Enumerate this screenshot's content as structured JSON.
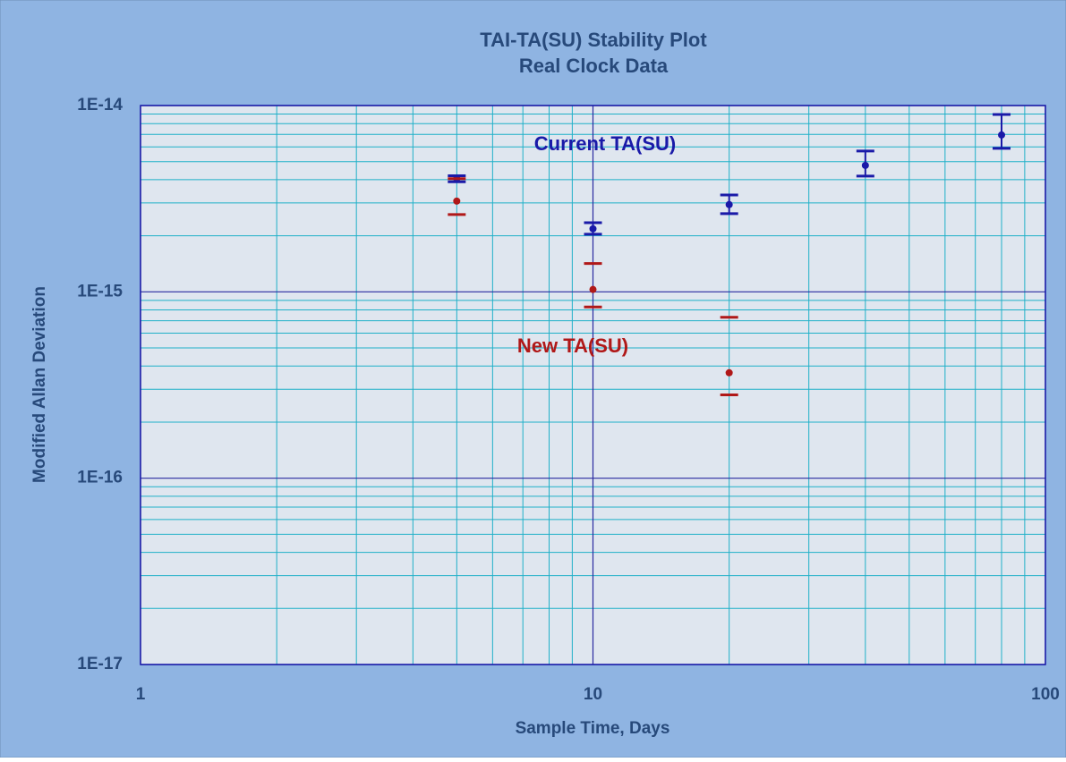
{
  "chart_data": {
    "type": "scatter",
    "title": "TAI-TA(SU) Stability Plot",
    "subtitle": "Real Clock Data",
    "x_label": "Sample Time, Days",
    "y_label": "Modified Allan Deviation",
    "xscale": "log",
    "yscale": "log",
    "grid": true,
    "xlim": [
      1,
      100
    ],
    "ylim": [
      1e-17,
      1e-14
    ],
    "xticks": [
      1,
      10,
      100
    ],
    "xminorticks": [
      2,
      3,
      4,
      5,
      6,
      7,
      8,
      9,
      20,
      30,
      40,
      50,
      60,
      70,
      80,
      90
    ],
    "yticks": [
      {
        "value": 1e-17,
        "label": "1E-17"
      },
      {
        "value": 1e-16,
        "label": "1E-16"
      },
      {
        "value": 1e-15,
        "label": "1E-15"
      },
      {
        "value": 1e-14,
        "label": "1E-14"
      }
    ],
    "yminorticks": [
      2e-17,
      3e-17,
      4e-17,
      5e-17,
      6e-17,
      7e-17,
      8e-17,
      9e-17,
      2e-16,
      3e-16,
      4e-16,
      5e-16,
      6e-16,
      7e-16,
      8e-16,
      9e-16,
      2e-15,
      3e-15,
      4e-15,
      5e-15,
      6e-15,
      7e-15,
      8e-15,
      9e-15
    ],
    "series": [
      {
        "name": "Current TA(SU)",
        "color": "#1a1aa8",
        "stem": true,
        "x": [
          5,
          10,
          20,
          40,
          80
        ],
        "values": [
          4.05e-15,
          2.18e-15,
          2.94e-15,
          4.77e-15,
          6.95e-15
        ],
        "lower": [
          3.9e-15,
          2.04e-15,
          2.63e-15,
          4.18e-15,
          5.89e-15
        ],
        "upper": [
          4.2e-15,
          2.35e-15,
          3.31e-15,
          5.7e-15,
          8.95e-15
        ]
      },
      {
        "name": "New TA(SU)",
        "color": "#b01818",
        "stem": false,
        "x": [
          5,
          10,
          20
        ],
        "values": [
          3.07e-15,
          1.03e-15,
          3.68e-16
        ],
        "lower": [
          2.6e-15,
          8.3e-16,
          2.8e-16
        ],
        "upper": [
          4.05e-15,
          1.42e-15,
          7.3e-16
        ]
      }
    ]
  }
}
